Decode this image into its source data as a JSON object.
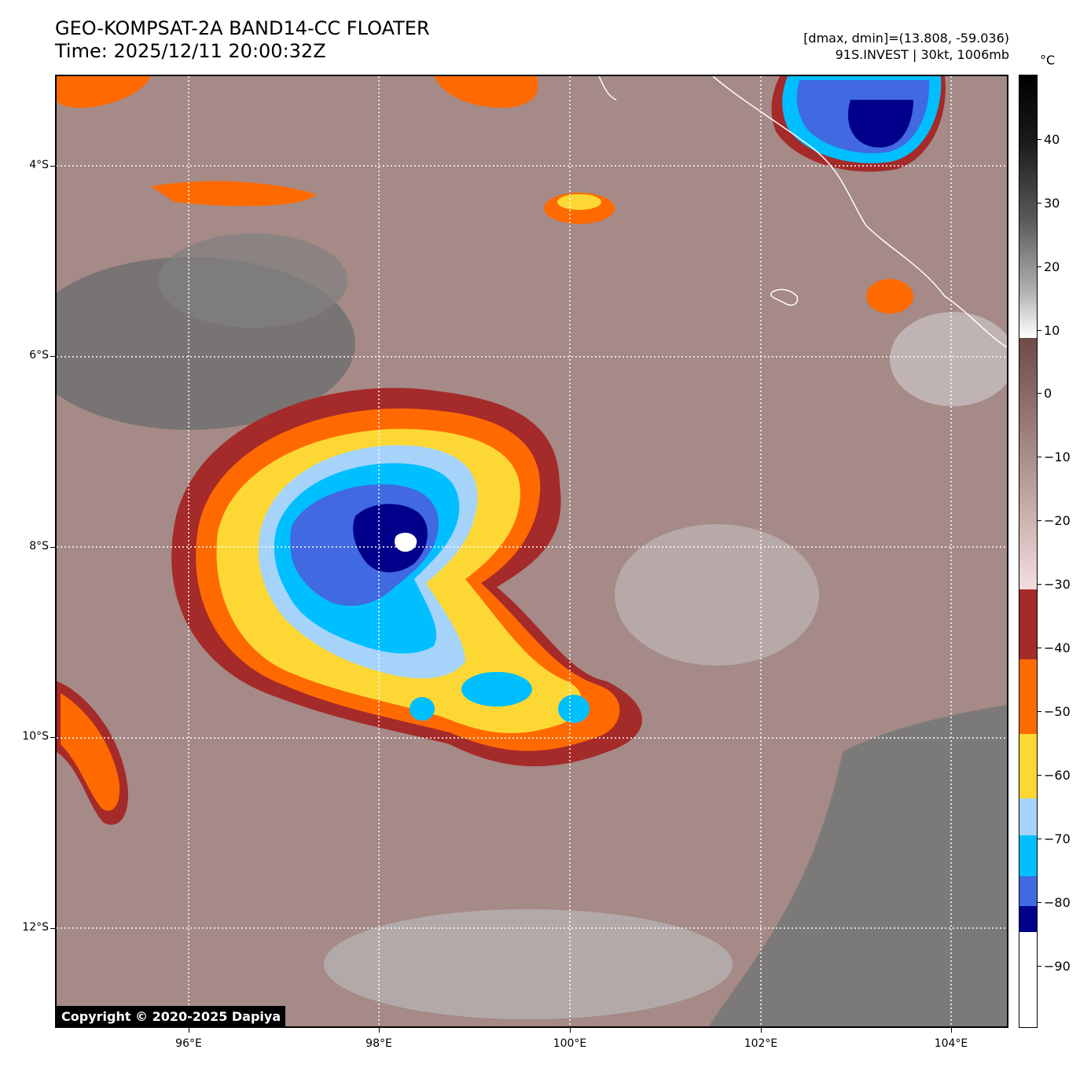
{
  "header": {
    "title_line1": "GEO-KOMPSAT-2A BAND14-CC FLOATER",
    "title_line2": "Time: 2025/12/11 20:00:32Z",
    "info_line1": "[dmax, dmin]=(13.808, -59.036)",
    "info_line2": "91S.INVEST | 30kt, 1006mb"
  },
  "map": {
    "lat_labels": [
      "4°S",
      "6°S",
      "8°S",
      "10°S",
      "12°S"
    ],
    "lon_labels": [
      "96°E",
      "98°E",
      "100°E",
      "102°E",
      "104°E"
    ],
    "copyright": "Copyright © 2020-2025 Dapiya"
  },
  "colorbar": {
    "unit": "°C",
    "tick_labels": [
      "40",
      "30",
      "20",
      "10",
      "0",
      "−10",
      "−20",
      "−30",
      "−40",
      "−50",
      "−60",
      "−70",
      "−80",
      "−90"
    ],
    "colors": {
      "black": "#000000",
      "gray": "#8a8a8a",
      "white": "#ffffff",
      "brown_dark": "#6e4a49",
      "pink_light": "#f3dede",
      "red": "#a52a2a",
      "orange": "#ff6a00",
      "yellow": "#fdd835",
      "light_blue": "#a6d3fa",
      "cyan": "#00bfff",
      "royal_blue": "#4169e1",
      "navy": "#00008b"
    }
  }
}
